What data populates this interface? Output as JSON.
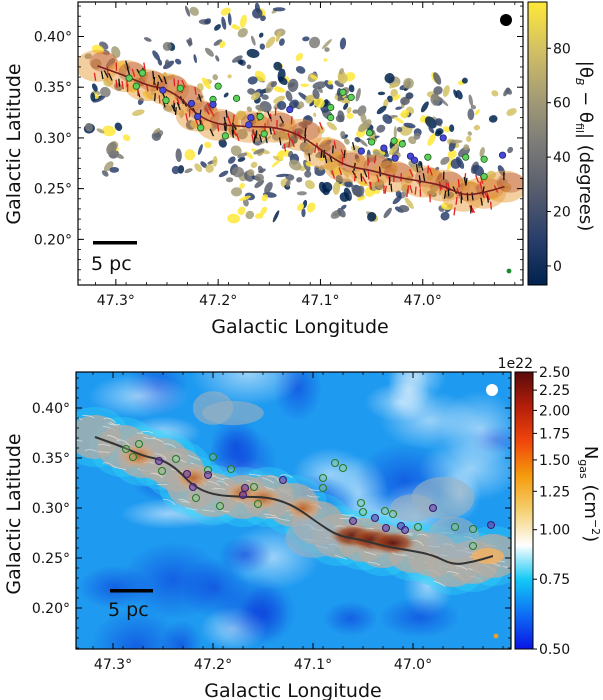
{
  "chart_data": [
    {
      "type": "heatmap",
      "panel": "top",
      "title": "",
      "xlabel": "Galactic Longitude",
      "ylabel": "Galactic Latitude",
      "xlim": [
        47.337,
        46.902
      ],
      "ylim": [
        0.155,
        0.434
      ],
      "x_ticks": [
        47.3,
        47.2,
        47.1,
        47.0
      ],
      "x_tick_labels": [
        "47.3°",
        "47.2°",
        "47.1°",
        "47.0°"
      ],
      "y_ticks": [
        0.4,
        0.35,
        0.3,
        0.25,
        0.2
      ],
      "y_tick_labels": [
        "0.40°",
        "0.35°",
        "0.30°",
        "0.25°",
        "0.20°"
      ],
      "background": "#ffffff",
      "colorbar": {
        "label": "|θB − θfil| (degrees)",
        "label_parts": {
          "pre": "|θ",
          "sub1": "B",
          "mid": " − θ",
          "sub2": "fil",
          "post": "| (degrees)"
        },
        "ticks": [
          0,
          20,
          40,
          60,
          80
        ],
        "tick_labels": [
          "0",
          "20",
          "40",
          "60",
          "80"
        ],
        "range": [
          -7,
          97
        ],
        "colormap": "cividis",
        "stops": [
          "#00224e",
          "#2a3f6c",
          "#575d6d",
          "#7c7b78",
          "#a69d75",
          "#d3c164",
          "#fee838"
        ]
      },
      "scale_bar": {
        "label": "5 pc"
      },
      "beam_marker": {
        "color": "#000000",
        "position": "top-right"
      },
      "small_marker": {
        "color": "#1a8a2a",
        "position": "bottom-right"
      },
      "spine": {
        "color": "#7a1f1f",
        "points": [
          [
            47.318,
            0.371
          ],
          [
            47.29,
            0.361
          ],
          [
            47.27,
            0.352
          ],
          [
            47.25,
            0.348
          ],
          [
            47.235,
            0.338
          ],
          [
            47.22,
            0.322
          ],
          [
            47.2,
            0.313
          ],
          [
            47.17,
            0.311
          ],
          [
            47.145,
            0.311
          ],
          [
            47.12,
            0.303
          ],
          [
            47.095,
            0.285
          ],
          [
            47.075,
            0.272
          ],
          [
            47.05,
            0.268
          ],
          [
            47.03,
            0.262
          ],
          [
            47.0,
            0.257
          ],
          [
            46.98,
            0.253
          ],
          [
            46.96,
            0.243
          ],
          [
            46.94,
            0.246
          ],
          [
            46.92,
            0.252
          ]
        ]
      },
      "sources_green": [
        [
          47.287,
          0.359
        ],
        [
          47.28,
          0.351
        ],
        [
          47.274,
          0.364
        ],
        [
          47.251,
          0.337
        ],
        [
          47.237,
          0.349
        ],
        [
          47.2,
          0.351
        ],
        [
          47.205,
          0.338
        ],
        [
          47.182,
          0.339
        ],
        [
          47.159,
          0.321
        ],
        [
          47.155,
          0.304
        ],
        [
          47.193,
          0.302
        ],
        [
          47.217,
          0.31
        ],
        [
          47.09,
          0.33
        ],
        [
          47.078,
          0.345
        ],
        [
          47.07,
          0.34
        ],
        [
          47.09,
          0.32
        ],
        [
          47.052,
          0.305
        ],
        [
          47.05,
          0.296
        ],
        [
          47.028,
          0.297
        ],
        [
          47.02,
          0.294
        ],
        [
          46.995,
          0.281
        ],
        [
          46.958,
          0.281
        ],
        [
          46.94,
          0.279
        ],
        [
          46.94,
          0.262
        ]
      ],
      "sources_blue": [
        [
          47.254,
          0.347
        ],
        [
          47.226,
          0.334
        ],
        [
          47.22,
          0.321
        ],
        [
          47.205,
          0.333
        ],
        [
          47.168,
          0.32
        ],
        [
          47.17,
          0.313
        ],
        [
          47.13,
          0.328
        ],
        [
          47.06,
          0.287
        ],
        [
          47.038,
          0.29
        ],
        [
          47.027,
          0.28
        ],
        [
          47.012,
          0.282
        ],
        [
          47.008,
          0.278
        ],
        [
          46.98,
          0.3
        ],
        [
          46.922,
          0.283
        ]
      ]
    },
    {
      "type": "heatmap",
      "panel": "bottom",
      "title": "",
      "xlabel": "Galactic Longitude",
      "ylabel": "Galactic Latitude",
      "xlim": [
        47.337,
        46.902
      ],
      "ylim": [
        0.159,
        0.436
      ],
      "x_ticks": [
        47.3,
        47.2,
        47.1,
        47.0
      ],
      "x_tick_labels": [
        "47.3°",
        "47.2°",
        "47.1°",
        "47.0°"
      ],
      "y_ticks": [
        0.4,
        0.35,
        0.3,
        0.25,
        0.2
      ],
      "y_tick_labels": [
        "0.40°",
        "0.35°",
        "0.30°",
        "0.25°",
        "0.20°"
      ],
      "background": "#1e9af0",
      "colorbar": {
        "label": "Ngas (cm−2)",
        "label_parts": {
          "pre": "N",
          "sub1": "gas",
          "mid": " (cm",
          "sup": "−2",
          "post": ")"
        },
        "offset_label": "1e22",
        "scale": "log",
        "ticks": [
          0.5,
          0.75,
          1.0,
          1.25,
          1.5,
          1.75,
          2.0,
          2.25,
          2.5
        ],
        "tick_labels": [
          "0.50",
          "0.75",
          "1.00",
          "1.25",
          "1.50",
          "1.75",
          "2.00",
          "2.25",
          "2.50"
        ],
        "range": [
          0.5,
          2.5
        ],
        "stops": [
          "#0a14e6",
          "#0d6ef5",
          "#13c8f5",
          "#ffffff",
          "#f5d070",
          "#f59b0c",
          "#f0460c",
          "#b41e0a",
          "#5a0a0a"
        ]
      },
      "scale_bar": {
        "label": "5 pc"
      },
      "beam_marker": {
        "color": "#ffffff",
        "position": "top-right"
      },
      "small_marker": {
        "color": "#f0a020",
        "position": "bottom-right"
      },
      "spine": {
        "color": "#333333",
        "points": [
          [
            47.318,
            0.371
          ],
          [
            47.29,
            0.361
          ],
          [
            47.27,
            0.352
          ],
          [
            47.25,
            0.348
          ],
          [
            47.235,
            0.338
          ],
          [
            47.22,
            0.322
          ],
          [
            47.2,
            0.313
          ],
          [
            47.17,
            0.311
          ],
          [
            47.145,
            0.311
          ],
          [
            47.12,
            0.303
          ],
          [
            47.095,
            0.285
          ],
          [
            47.075,
            0.272
          ],
          [
            47.05,
            0.268
          ],
          [
            47.03,
            0.262
          ],
          [
            47.0,
            0.257
          ],
          [
            46.98,
            0.253
          ],
          [
            46.96,
            0.243
          ],
          [
            46.94,
            0.246
          ],
          [
            46.92,
            0.252
          ]
        ]
      },
      "sources_green": [
        [
          47.287,
          0.359
        ],
        [
          47.28,
          0.351
        ],
        [
          47.274,
          0.364
        ],
        [
          47.251,
          0.337
        ],
        [
          47.237,
          0.349
        ],
        [
          47.2,
          0.351
        ],
        [
          47.205,
          0.338
        ],
        [
          47.182,
          0.339
        ],
        [
          47.159,
          0.321
        ],
        [
          47.155,
          0.304
        ],
        [
          47.193,
          0.302
        ],
        [
          47.217,
          0.31
        ],
        [
          47.09,
          0.33
        ],
        [
          47.078,
          0.345
        ],
        [
          47.07,
          0.34
        ],
        [
          47.09,
          0.32
        ],
        [
          47.052,
          0.305
        ],
        [
          47.05,
          0.296
        ],
        [
          47.028,
          0.297
        ],
        [
          47.02,
          0.294
        ],
        [
          46.995,
          0.281
        ],
        [
          46.958,
          0.281
        ],
        [
          46.94,
          0.279
        ],
        [
          46.94,
          0.262
        ]
      ],
      "sources_blue": [
        [
          47.254,
          0.347
        ],
        [
          47.226,
          0.334
        ],
        [
          47.22,
          0.321
        ],
        [
          47.205,
          0.333
        ],
        [
          47.168,
          0.32
        ],
        [
          47.17,
          0.313
        ],
        [
          47.13,
          0.328
        ],
        [
          47.06,
          0.287
        ],
        [
          47.038,
          0.29
        ],
        [
          47.027,
          0.28
        ],
        [
          47.012,
          0.282
        ],
        [
          47.008,
          0.278
        ],
        [
          46.98,
          0.3
        ],
        [
          46.922,
          0.283
        ]
      ]
    }
  ]
}
